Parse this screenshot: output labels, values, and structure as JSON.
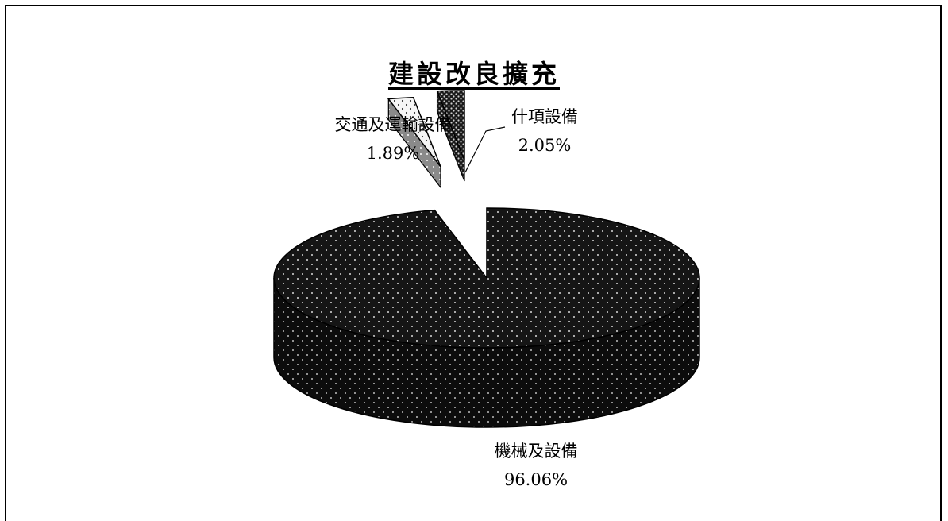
{
  "chart_data": {
    "type": "pie",
    "title": "建設改良擴充",
    "slices": [
      {
        "label": "機械及設備",
        "value": 96.06,
        "value_label": "96.06%",
        "pattern": "dark-dotted",
        "color": "#151515"
      },
      {
        "label": "交通及運輸設備",
        "value": 1.89,
        "value_label": "1.89%",
        "pattern": "light-dotted",
        "color": "#f2f2f2"
      },
      {
        "label": "什項設備",
        "value": 2.05,
        "value_label": "2.05%",
        "pattern": "medium-dotted",
        "color": "#2a2a2a"
      }
    ],
    "legend": "none",
    "style": "3d-exploded"
  }
}
